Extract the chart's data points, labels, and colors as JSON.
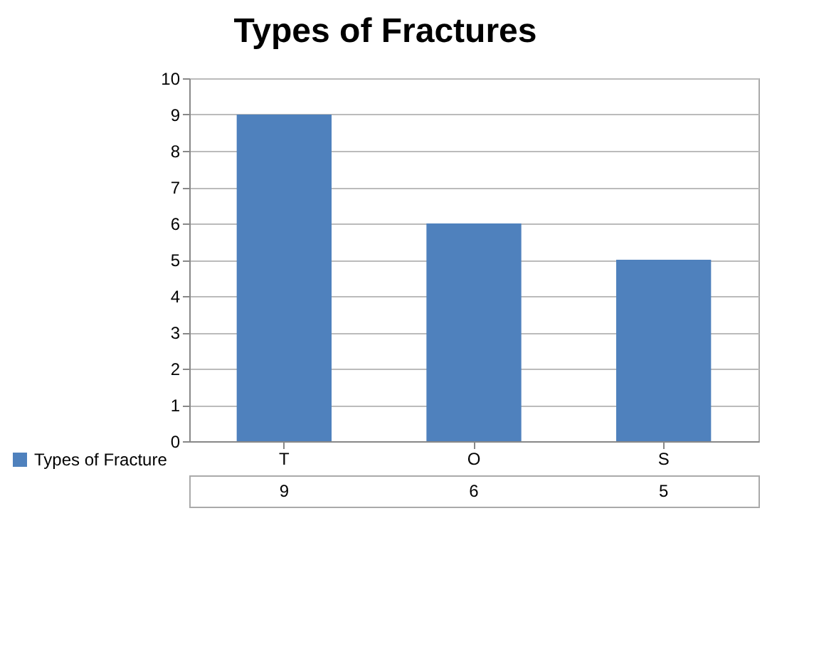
{
  "chart_data": {
    "type": "bar",
    "title": "Types of Fractures",
    "categories": [
      "T",
      "O",
      "S"
    ],
    "series": [
      {
        "name": "Types of Fracture",
        "color": "#4f81bd",
        "values": [
          9,
          6,
          5
        ]
      }
    ],
    "ylim": [
      0,
      10
    ],
    "yticks": [
      0,
      1,
      2,
      3,
      4,
      5,
      6,
      7,
      8,
      9,
      10
    ],
    "grid": "y",
    "legend": "bottom left",
    "data_labels": true
  }
}
